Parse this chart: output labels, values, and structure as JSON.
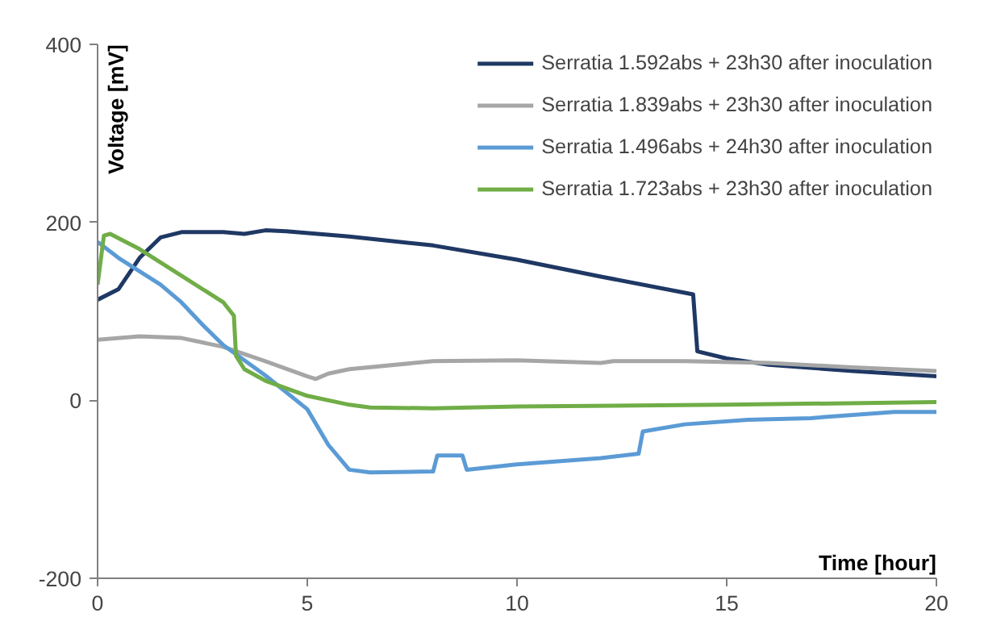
{
  "chart_data": {
    "type": "line",
    "xlabel": "Time [hour]",
    "ylabel": "Voltage [mV]",
    "xlim": [
      0,
      20
    ],
    "ylim": [
      -200,
      400
    ],
    "xticks": [
      0,
      5,
      10,
      15,
      20
    ],
    "yticks": [
      -200,
      0,
      200,
      400
    ],
    "grid": false,
    "legend": "top right",
    "marker": "none",
    "line_style": "solid",
    "series": [
      {
        "name": "Serratia 1.592abs + 23h30 after inoculation",
        "color": "#1f3864",
        "x": [
          0,
          0.5,
          1,
          1.5,
          2,
          3,
          3.5,
          4,
          4.5,
          6,
          8,
          10,
          12,
          14.2,
          14.3,
          15,
          16,
          18,
          20
        ],
        "values": [
          113,
          125,
          160,
          183,
          189,
          189,
          187,
          191,
          190,
          184,
          174,
          158,
          139,
          119,
          55,
          47,
          40,
          33,
          27
        ]
      },
      {
        "name": "Serratia 1.839abs + 23h30 after inoculation",
        "color": "#a6a6a6",
        "x": [
          0,
          1,
          1.5,
          2,
          3,
          4,
          5,
          5.2,
          5.5,
          6,
          8,
          10,
          12,
          12.3,
          14,
          16,
          18,
          20
        ],
        "values": [
          68,
          72,
          71,
          70,
          60,
          44,
          27,
          24,
          30,
          35,
          44,
          45,
          42,
          44,
          44,
          42,
          37,
          33
        ]
      },
      {
        "name": "Serratia 1.496abs + 24h30 after inoculation",
        "color": "#5b9bd5",
        "x": [
          0,
          0.5,
          1,
          1.5,
          2,
          2.5,
          3,
          4,
          5,
          5.5,
          6,
          6.5,
          8,
          8.1,
          8.7,
          8.8,
          10,
          12,
          12.9,
          13,
          14,
          15.5,
          17,
          19,
          20
        ],
        "values": [
          178,
          160,
          145,
          130,
          110,
          85,
          62,
          28,
          -10,
          -50,
          -78,
          -81,
          -80,
          -62,
          -62,
          -78,
          -72,
          -65,
          -60,
          -35,
          -27,
          -22,
          -20,
          -13,
          -13
        ]
      },
      {
        "name": "Serratia 1.723abs + 23h30 after inoculation",
        "color": "#70ad47",
        "x": [
          0,
          0.15,
          0.3,
          1,
          2,
          3,
          3.25,
          3.3,
          3.5,
          4,
          5,
          6,
          6.5,
          8,
          10,
          15,
          20
        ],
        "values": [
          130,
          185,
          187,
          170,
          140,
          110,
          95,
          50,
          35,
          22,
          5,
          -5,
          -8,
          -9,
          -7,
          -5,
          -2
        ]
      }
    ]
  }
}
